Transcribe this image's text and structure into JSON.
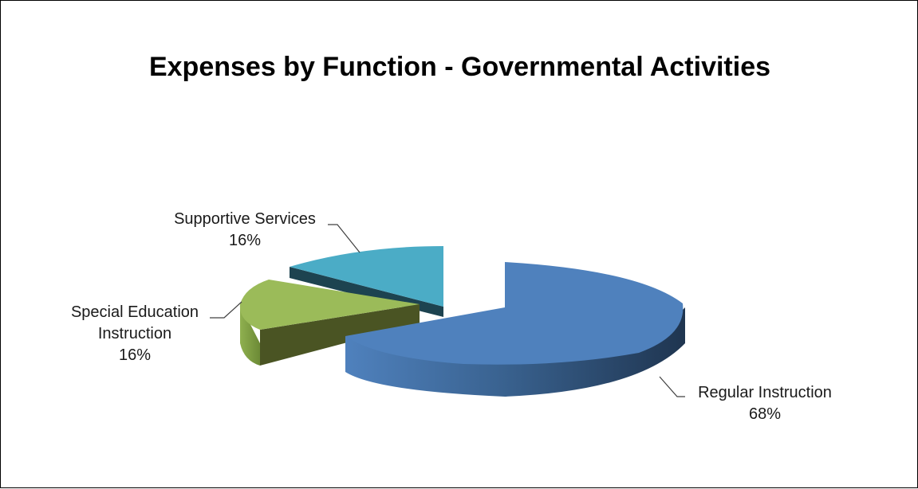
{
  "chart_data": {
    "type": "pie",
    "title": "Expenses by Function - Governmental Activities",
    "three_d": true,
    "exploded": true,
    "categories": [
      "Regular Instruction",
      "Special Education Instruction",
      "Supportive Services"
    ],
    "values": [
      68,
      16,
      16
    ],
    "value_labels": [
      "68%",
      "16%",
      "16%"
    ],
    "colors": [
      "#4f81bd",
      "#9bbb59",
      "#4bacc6"
    ],
    "legend": "none",
    "data_labels": "outside-with-leader-lines"
  }
}
